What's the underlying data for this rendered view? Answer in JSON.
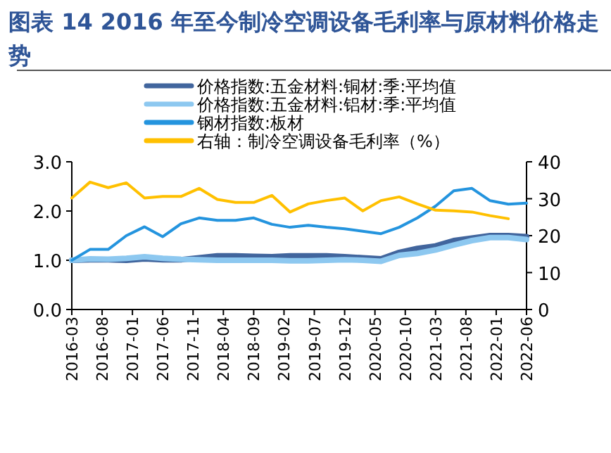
{
  "chart_data": {
    "type": "line",
    "title": "图表 14 2016 年至今制冷空调设备毛利率与原材料价格走势",
    "x": [
      "2016-03",
      "2016-06",
      "2016-09",
      "2016-12",
      "2017-03",
      "2017-06",
      "2017-09",
      "2017-12",
      "2018-03",
      "2018-06",
      "2018-09",
      "2018-12",
      "2019-03",
      "2019-06",
      "2019-09",
      "2019-12",
      "2020-03",
      "2020-06",
      "2020-09",
      "2020-12",
      "2021-03",
      "2021-06",
      "2021-09",
      "2021-12",
      "2022-03",
      "2022-06"
    ],
    "xlim": [
      "2016-03",
      "2022-06"
    ],
    "xticks": [
      "2016-03",
      "2016-08",
      "2017-01",
      "2017-06",
      "2017-11",
      "2018-04",
      "2018-09",
      "2019-02",
      "2019-07",
      "2019-12",
      "2020-05",
      "2020-10",
      "2021-03",
      "2021-08",
      "2022-01",
      "2022-06"
    ],
    "ylim": [
      0,
      3
    ],
    "yticks": [
      {
        "value": 0,
        "label": "0.0"
      },
      {
        "value": 1,
        "label": "1.0"
      },
      {
        "value": 2,
        "label": "2.0"
      },
      {
        "value": 3,
        "label": "3.0"
      }
    ],
    "y2lim": [
      0,
      40
    ],
    "y2ticks": [
      0,
      10,
      20,
      30,
      40
    ],
    "legend": "top",
    "grid": false,
    "line_style": "solid",
    "series": [
      {
        "name": "价格指数:五金材料:铜材:季:平均值",
        "color": "#41659d",
        "values": [
          1.0,
          1.01,
          1.01,
          1.0,
          1.03,
          1.01,
          1.01,
          1.05,
          1.09,
          1.09,
          1.08,
          1.07,
          1.09,
          1.09,
          1.09,
          1.07,
          1.05,
          1.03,
          1.16,
          1.24,
          1.29,
          1.4,
          1.45,
          1.5,
          1.5,
          1.48
        ]
      },
      {
        "name": "价格指数:五金材料:铝材:季:平均值",
        "color": "#8dc8f0",
        "values": [
          1.0,
          1.03,
          1.02,
          1.04,
          1.07,
          1.04,
          1.02,
          1.01,
          1.0,
          1.0,
          1.0,
          1.0,
          0.99,
          0.99,
          1.0,
          1.01,
          1.0,
          0.98,
          1.1,
          1.14,
          1.21,
          1.31,
          1.4,
          1.46,
          1.46,
          1.42
        ]
      },
      {
        "name": "钢材指数:板材",
        "color": "#2494de",
        "values": [
          1.0,
          1.22,
          1.22,
          1.5,
          1.68,
          1.48,
          1.74,
          1.86,
          1.81,
          1.81,
          1.86,
          1.73,
          1.67,
          1.71,
          1.67,
          1.64,
          1.59,
          1.54,
          1.67,
          1.86,
          2.1,
          2.41,
          2.46,
          2.21,
          2.14,
          2.16
        ]
      },
      {
        "name": "右轴：制冷空调设备毛利率（%）",
        "color": "#ffc000",
        "axis": "y2",
        "values": [
          30.2,
          34.5,
          33.0,
          34.3,
          30.2,
          30.6,
          30.6,
          32.8,
          29.8,
          29.0,
          29.0,
          30.9,
          26.4,
          28.6,
          29.5,
          30.2,
          26.7,
          29.5,
          30.5,
          28.6,
          26.9,
          26.7,
          26.4,
          25.4,
          24.6,
          null
        ]
      }
    ]
  }
}
